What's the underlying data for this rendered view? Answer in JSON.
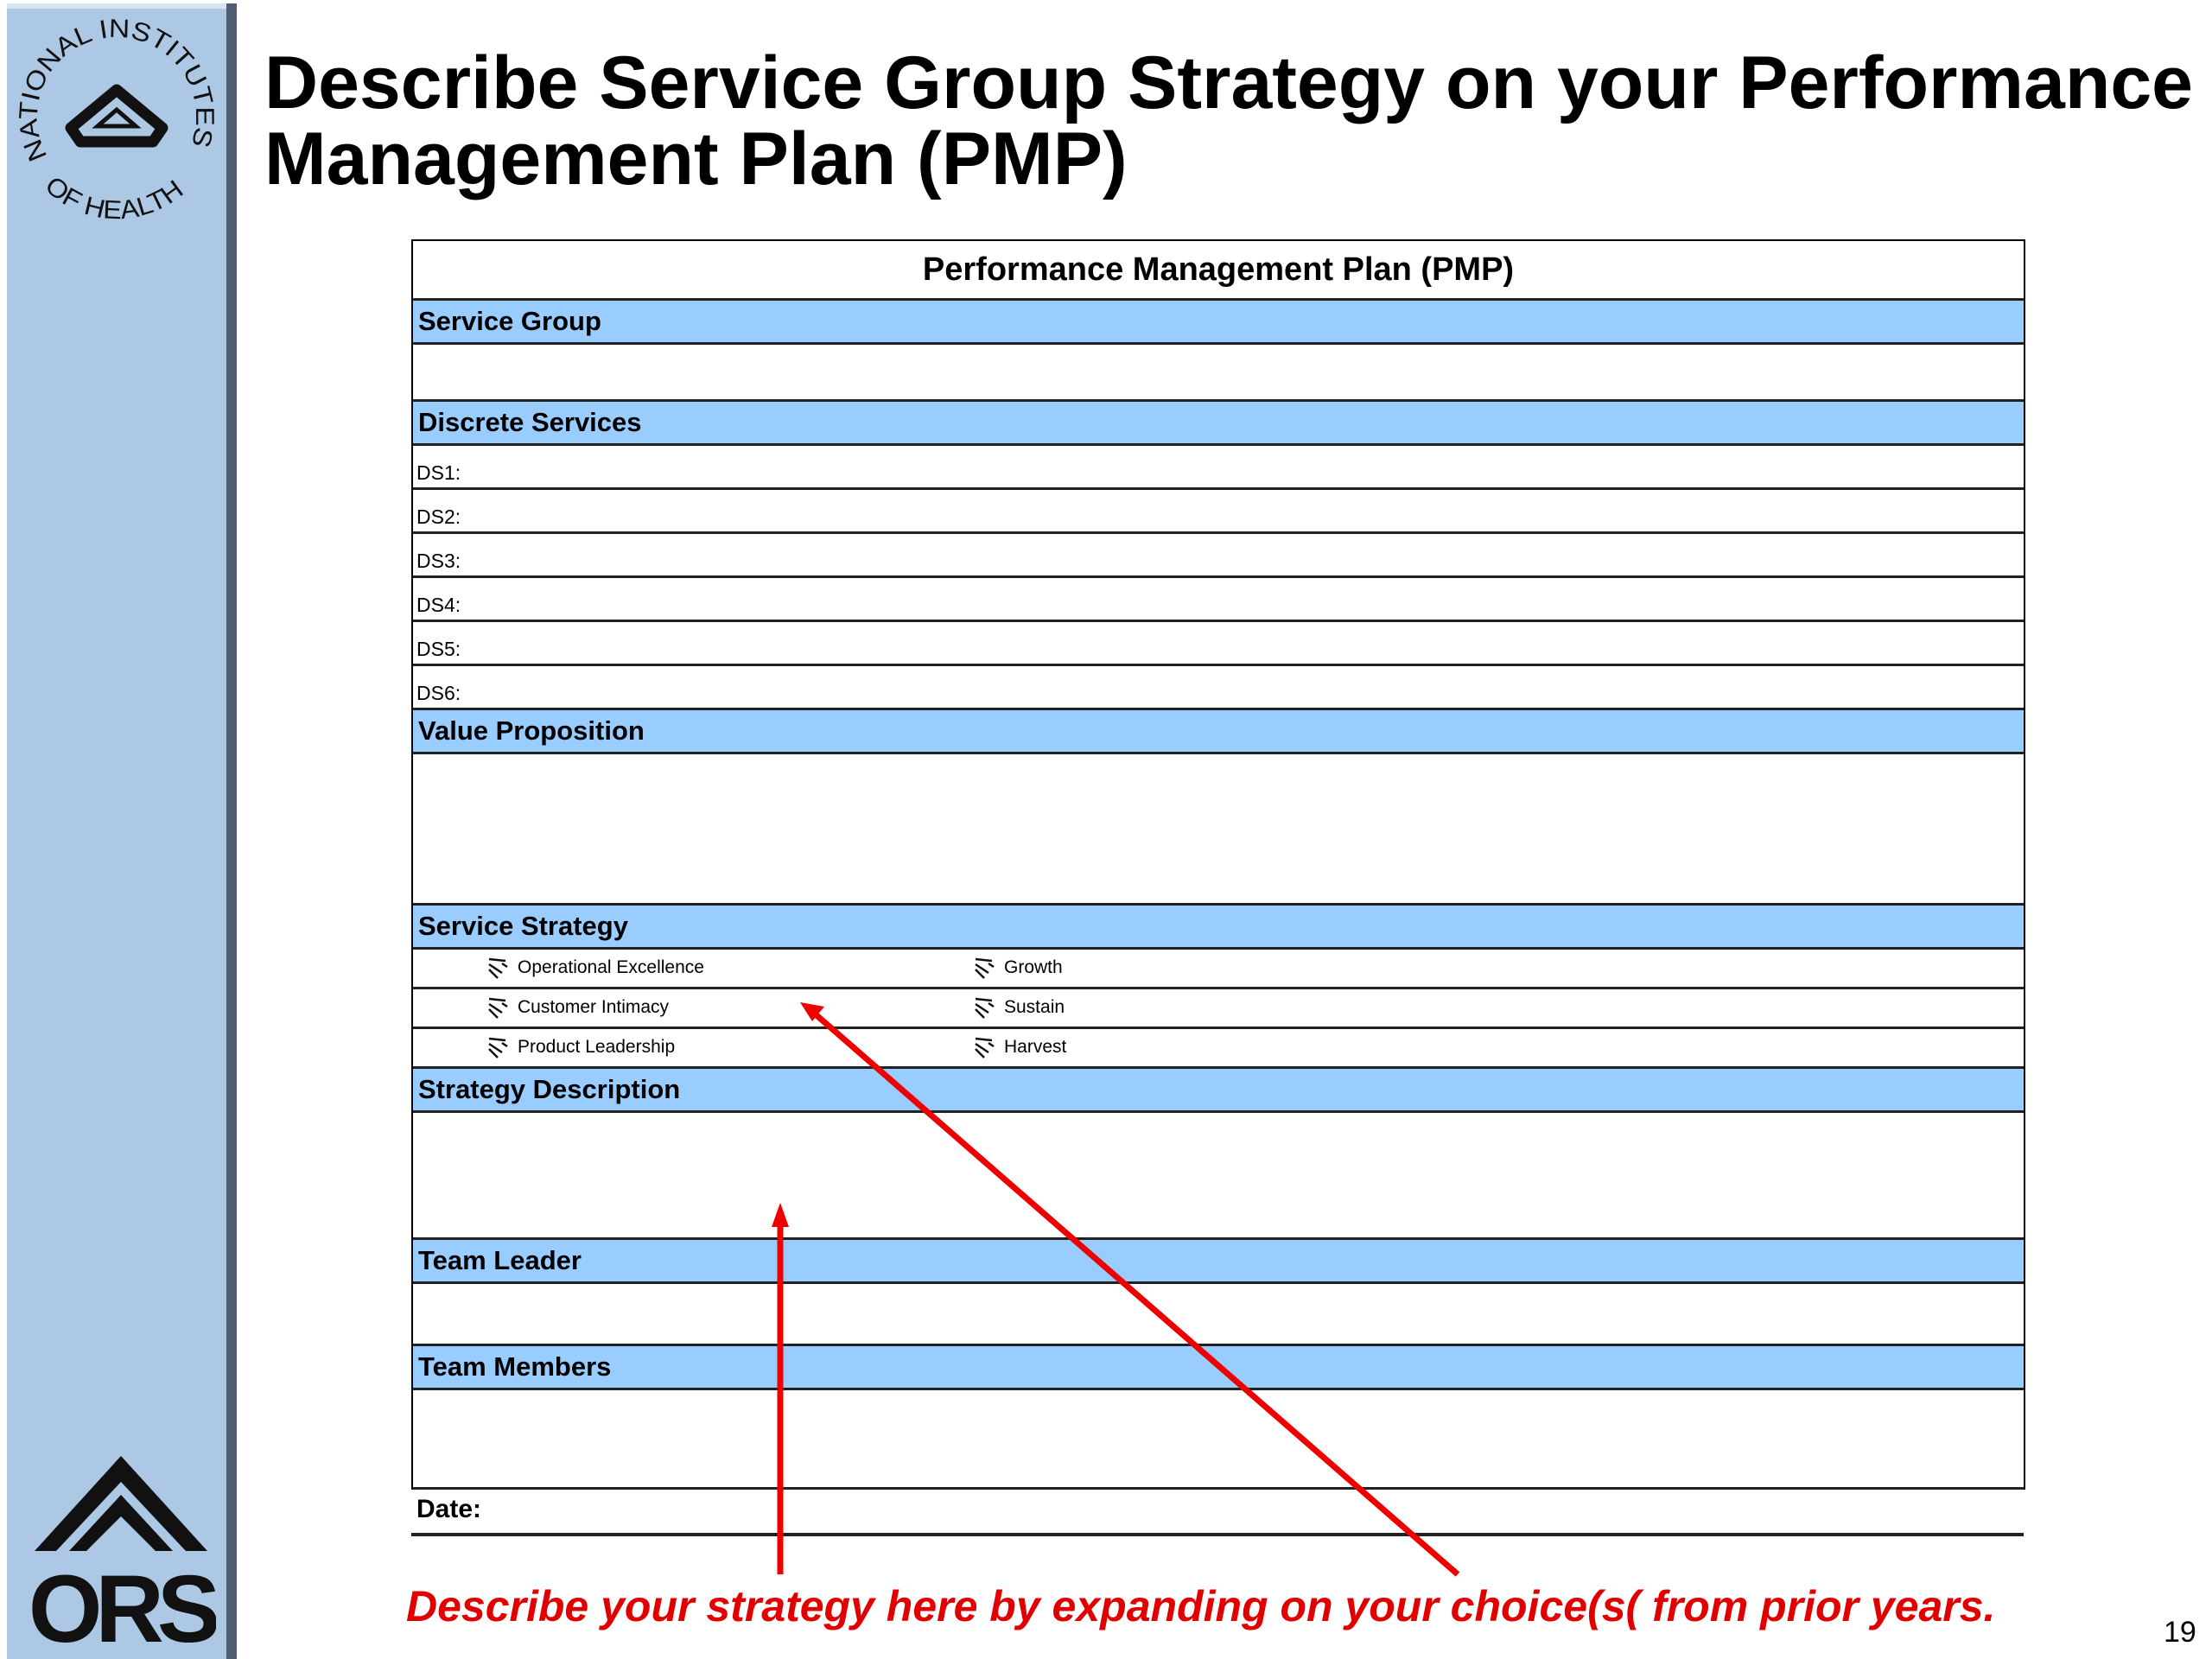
{
  "slide": {
    "title": "Describe Service Group Strategy on your Performance Management Plan (PMP)",
    "page_number": "19",
    "logos": {
      "top": "NATIONAL INSTITUTES OF HEALTH",
      "bottom": "ORS"
    },
    "colors": {
      "sidebar": "#adc8e4",
      "section_bar": "#99ccff",
      "annotation": "#e00000"
    }
  },
  "form": {
    "heading": "Performance Management Plan (PMP)",
    "service_group": "Service Group",
    "discrete_services": "Discrete Services",
    "ds": [
      "DS1:",
      "DS2:",
      "DS3:",
      "DS4:",
      "DS5:",
      "DS6:"
    ],
    "value_proposition": "Value Proposition",
    "service_strategy": "Service Strategy",
    "options_left": [
      "Operational Excellence",
      "Customer Intimacy",
      "Product Leadership"
    ],
    "options_right": [
      "Growth",
      "Sustain",
      "Harvest"
    ],
    "strategy_description": "Strategy Description",
    "team_leader": "Team Leader",
    "team_members": "Team Members",
    "date_label": "Date:"
  },
  "annotation": {
    "text": "Describe your strategy here by expanding on your choice(s( from prior years."
  }
}
